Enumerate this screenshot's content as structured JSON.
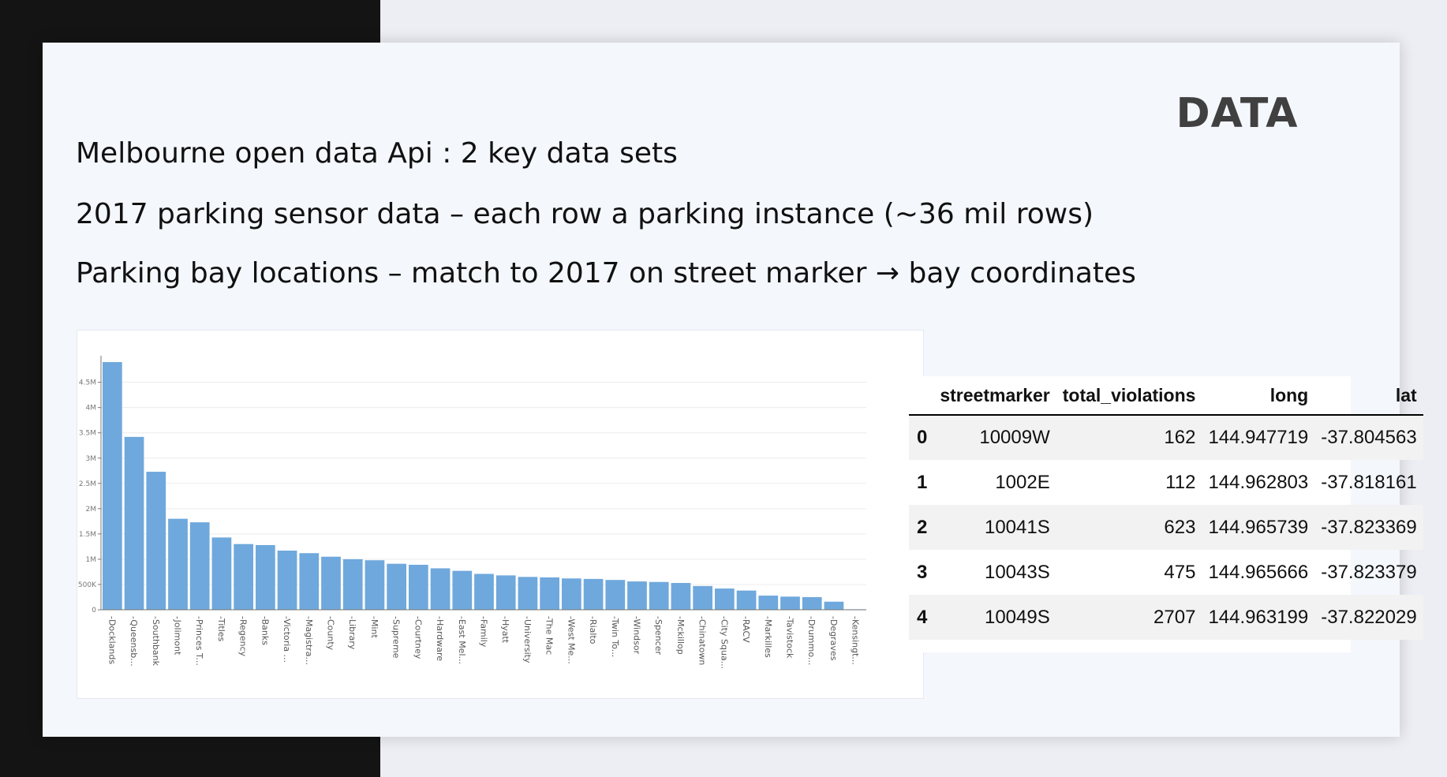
{
  "slide": {
    "title": "DATA",
    "lines": [
      "Melbourne open data Api : 2 key data sets",
      "2017 parking sensor data – each row a parking instance (~36 mil rows)",
      "Parking bay locations – match to 2017 on street marker → bay coordinates"
    ]
  },
  "chart_data": {
    "type": "bar",
    "categories": [
      "Docklands",
      "Queensb...",
      "Southbank",
      "Jolimont",
      "Princes T...",
      "Titles",
      "Regency",
      "Banks",
      "Victoria ...",
      "Magistra...",
      "County",
      "Library",
      "Mint",
      "Supreme",
      "Courtney",
      "Hardware",
      "East Mel...",
      "Family",
      "Hyatt",
      "University",
      "The Mac",
      "West Me...",
      "Rialto",
      "Twin To...",
      "Windsor",
      "Spencer",
      "Mckillop",
      "Chinatown",
      "City Squa...",
      "RACV",
      "Markilles",
      "Tavistock",
      "Drummo...",
      "Degraves",
      "Kensingt..."
    ],
    "values": [
      4900000,
      3420000,
      2730000,
      1800000,
      1730000,
      1430000,
      1300000,
      1280000,
      1170000,
      1120000,
      1050000,
      1000000,
      980000,
      910000,
      890000,
      820000,
      770000,
      710000,
      680000,
      650000,
      640000,
      620000,
      610000,
      590000,
      560000,
      550000,
      530000,
      470000,
      420000,
      380000,
      280000,
      260000,
      250000,
      160000,
      10000
    ],
    "yticks": [
      "0",
      "500K",
      "1M",
      "1.5M",
      "2M",
      "2.5M",
      "3M",
      "3.5M",
      "4M",
      "4.5M"
    ],
    "ylim": [
      0,
      4900000
    ],
    "color": "#6fa8dc",
    "title": "",
    "xlabel": "",
    "ylabel": ""
  },
  "table": {
    "columns": [
      "",
      "streetmarker",
      "total_violations",
      "long",
      "lat"
    ],
    "rows": [
      {
        "index": "0",
        "streetmarker": "10009W",
        "total_violations": "162",
        "long": "144.947719",
        "lat": "-37.804563"
      },
      {
        "index": "1",
        "streetmarker": "1002E",
        "total_violations": "112",
        "long": "144.962803",
        "lat": "-37.818161"
      },
      {
        "index": "2",
        "streetmarker": "10041S",
        "total_violations": "623",
        "long": "144.965739",
        "lat": "-37.823369"
      },
      {
        "index": "3",
        "streetmarker": "10043S",
        "total_violations": "475",
        "long": "144.965666",
        "lat": "-37.823379"
      },
      {
        "index": "4",
        "streetmarker": "10049S",
        "total_violations": "2707",
        "long": "144.963199",
        "lat": "-37.822029"
      }
    ]
  }
}
